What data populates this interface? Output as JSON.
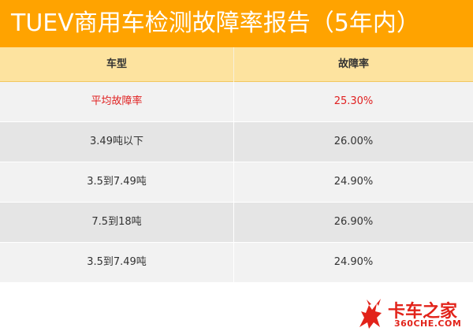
{
  "title": "TUEV商用车检测故障率报告（5年内）",
  "table": {
    "headers": [
      "车型",
      "故障率"
    ],
    "rows": [
      {
        "type": "平均故障率",
        "rate": "25.30%",
        "highlight": true
      },
      {
        "type": "3.49吨以下",
        "rate": "26.00%",
        "highlight": false
      },
      {
        "type": "3.5到7.49吨",
        "rate": "24.90%",
        "highlight": false
      },
      {
        "type": "7.5到18吨",
        "rate": "26.90%",
        "highlight": false
      },
      {
        "type": "3.5到7.49吨",
        "rate": "24.90%",
        "highlight": false
      }
    ]
  },
  "watermark": {
    "brand": "卡车之家",
    "domain": "360CHE.COM",
    "logo_icon": "bull-icon",
    "color": "#e2231a"
  },
  "colors": {
    "title_bg": "#ffa300",
    "header_bg": "#fde39f",
    "highlight_text": "#e02020"
  }
}
